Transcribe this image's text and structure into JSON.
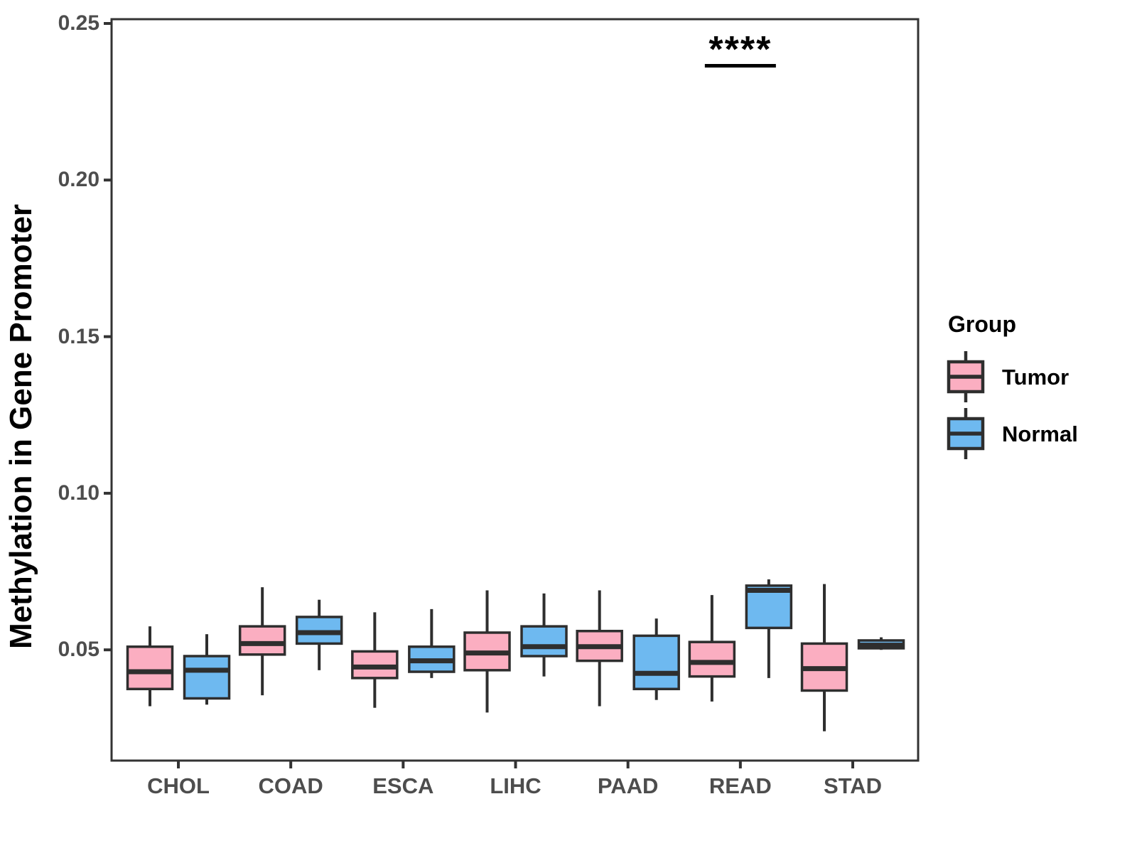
{
  "chart_data": {
    "type": "boxplot",
    "title": "",
    "xlabel": "",
    "ylabel": "Methylation in Gene Promoter",
    "categories": [
      "CHOL",
      "COAD",
      "ESCA",
      "LIHC",
      "PAAD",
      "READ",
      "STAD"
    ],
    "y_ticks": [
      0.05,
      0.1,
      0.15,
      0.2,
      0.25
    ],
    "ylim": [
      0.014,
      0.251
    ],
    "grid": false,
    "legend": {
      "title": "Group",
      "position": "right",
      "entries": [
        "Tumor",
        "Normal"
      ]
    },
    "series": [
      {
        "name": "Tumor",
        "fill": "#FBAEC1",
        "boxes": [
          {
            "category": "CHOL",
            "min": 0.032,
            "q1": 0.0375,
            "med": 0.043,
            "q3": 0.051,
            "max": 0.0575
          },
          {
            "category": "COAD",
            "min": 0.0355,
            "q1": 0.0485,
            "med": 0.052,
            "q3": 0.0575,
            "max": 0.07
          },
          {
            "category": "ESCA",
            "min": 0.0315,
            "q1": 0.041,
            "med": 0.0445,
            "q3": 0.0495,
            "max": 0.062
          },
          {
            "category": "LIHC",
            "min": 0.03,
            "q1": 0.0435,
            "med": 0.049,
            "q3": 0.0555,
            "max": 0.069
          },
          {
            "category": "PAAD",
            "min": 0.032,
            "q1": 0.0465,
            "med": 0.051,
            "q3": 0.056,
            "max": 0.069
          },
          {
            "category": "READ",
            "min": 0.0335,
            "q1": 0.0415,
            "med": 0.046,
            "q3": 0.0525,
            "max": 0.0675
          },
          {
            "category": "STAD",
            "min": 0.024,
            "q1": 0.037,
            "med": 0.044,
            "q3": 0.052,
            "max": 0.071
          }
        ]
      },
      {
        "name": "Normal",
        "fill": "#6EB9F0",
        "boxes": [
          {
            "category": "CHOL",
            "min": 0.0325,
            "q1": 0.0345,
            "med": 0.0435,
            "q3": 0.048,
            "max": 0.055
          },
          {
            "category": "COAD",
            "min": 0.0435,
            "q1": 0.052,
            "med": 0.0555,
            "q3": 0.0605,
            "max": 0.066
          },
          {
            "category": "ESCA",
            "min": 0.041,
            "q1": 0.043,
            "med": 0.0465,
            "q3": 0.051,
            "max": 0.063
          },
          {
            "category": "LIHC",
            "min": 0.0415,
            "q1": 0.048,
            "med": 0.051,
            "q3": 0.0575,
            "max": 0.068
          },
          {
            "category": "PAAD",
            "min": 0.034,
            "q1": 0.0375,
            "med": 0.0425,
            "q3": 0.0545,
            "max": 0.06
          },
          {
            "category": "READ",
            "min": 0.041,
            "q1": 0.057,
            "med": 0.069,
            "q3": 0.0705,
            "max": 0.0725
          },
          {
            "category": "STAD",
            "min": 0.05,
            "q1": 0.0505,
            "med": 0.0515,
            "q3": 0.053,
            "max": 0.054
          }
        ]
      }
    ],
    "annotations": [
      {
        "type": "significance-bracket",
        "text": "****",
        "category": "READ",
        "y_value": 0.2365
      }
    ],
    "style": {
      "box_border_color": "#2E2E2E",
      "panel_border_color": "#333333",
      "tick_color": "#333333",
      "tick_label_color": "#4D4D4D",
      "annotation_color": "#000000"
    }
  }
}
